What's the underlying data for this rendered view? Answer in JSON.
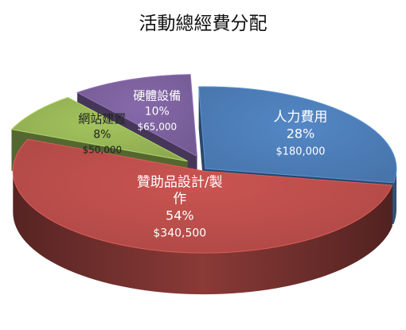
{
  "chart_data": {
    "type": "pie",
    "title": "活動總經費分配",
    "slices": [
      {
        "name": "人力費用",
        "percent": "28%",
        "amount": "$180,000",
        "value": 180000,
        "color": "#4f81bd"
      },
      {
        "name": "贊助品設計/製作",
        "percent": "54%",
        "amount": "$340,500",
        "value": 340500,
        "color": "#c0504d"
      },
      {
        "name": "網站建置",
        "percent": "8%",
        "amount": "$50,000",
        "value": 50000,
        "color": "#9bbb59"
      },
      {
        "name": "硬體設備",
        "percent": "10%",
        "amount": "$65,000",
        "value": 65000,
        "color": "#8064a2"
      }
    ],
    "legend": "none",
    "style": "3d exploded pie"
  }
}
